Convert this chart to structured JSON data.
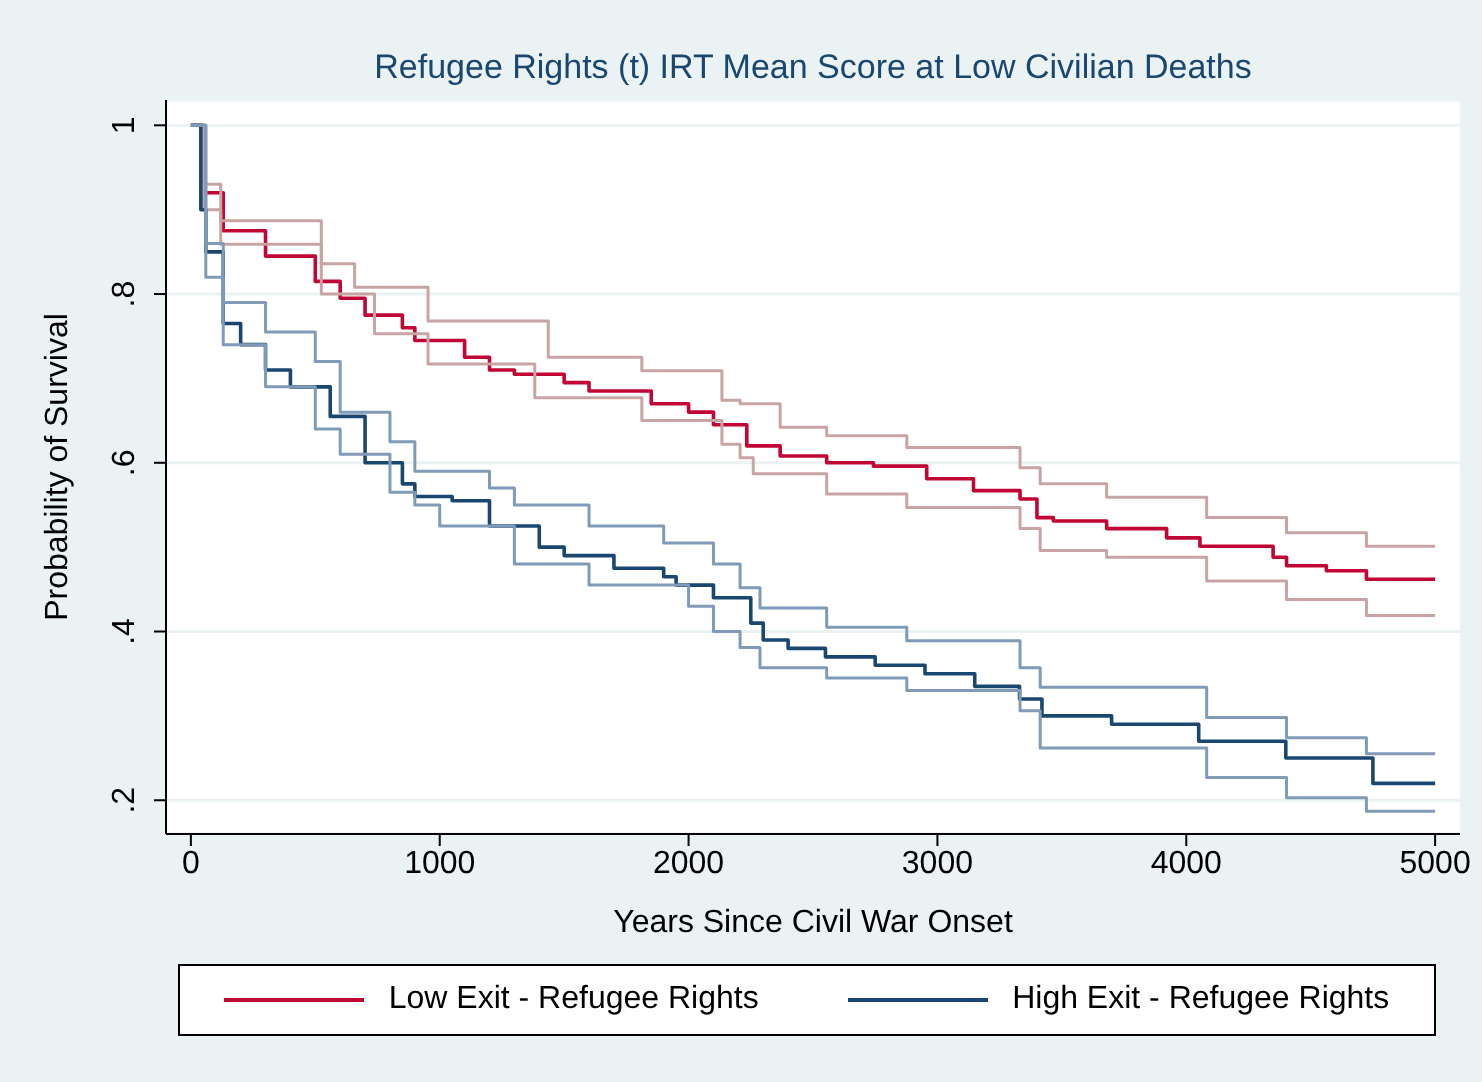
{
  "chart_data": {
    "type": "step",
    "title": "Refugee Rights (t) IRT Mean Score at Low Civilian Deaths",
    "xlabel": "Years Since Civil War Onset",
    "ylabel": "Probability of Survival",
    "xlim": [
      -100,
      5100
    ],
    "xticks": [
      0,
      1000,
      2000,
      3000,
      4000,
      5000
    ],
    "ylim": [
      0.16,
      1.03
    ],
    "yticks": [
      {
        "value": 0.2,
        "label": ".2"
      },
      {
        "value": 0.4,
        "label": ".4"
      },
      {
        "value": 0.6,
        "label": ".6"
      },
      {
        "value": 0.8,
        "label": ".8"
      },
      1
    ],
    "grid": "y",
    "legend": "bottom",
    "series": [
      {
        "name": "Low Exit - Refugee Rights",
        "color": "#c10534",
        "x": [
          0,
          50,
          130,
          300,
          500,
          600,
          700,
          850,
          900,
          1100,
          1200,
          1300,
          1500,
          1600,
          1850,
          2000,
          2100,
          2234,
          2368,
          2555,
          2743,
          2957,
          3145,
          3332,
          3400,
          3466,
          3680,
          3921,
          4055,
          4349,
          4403,
          4563,
          4724,
          5000
        ],
        "values": [
          1.0,
          0.92,
          0.875,
          0.845,
          0.815,
          0.795,
          0.775,
          0.76,
          0.745,
          0.725,
          0.71,
          0.705,
          0.695,
          0.685,
          0.67,
          0.66,
          0.645,
          0.62,
          0.608,
          0.6,
          0.596,
          0.581,
          0.567,
          0.557,
          0.535,
          0.531,
          0.522,
          0.511,
          0.501,
          0.488,
          0.478,
          0.472,
          0.462,
          0.462
        ]
      },
      {
        "color": "#c8a4a4",
        "x": [
          0,
          50,
          120,
          524,
          658,
          953,
          1436,
          1812,
          2134,
          2207,
          2368,
          2555,
          2877,
          3332,
          3413,
          3680,
          4082,
          4403,
          4724,
          5000
        ],
        "values": [
          1.0,
          0.93,
          0.887,
          0.836,
          0.808,
          0.768,
          0.725,
          0.709,
          0.674,
          0.67,
          0.642,
          0.632,
          0.618,
          0.594,
          0.575,
          0.559,
          0.535,
          0.517,
          0.501,
          0.501
        ]
      },
      {
        "color": "#c8a4a4",
        "x": [
          0,
          50,
          120,
          524,
          738,
          953,
          1382,
          1812,
          2134,
          2207,
          2260,
          2555,
          2877,
          3332,
          3413,
          3680,
          4082,
          4403,
          4724,
          5000
        ],
        "values": [
          1.0,
          0.9,
          0.859,
          0.8,
          0.753,
          0.717,
          0.677,
          0.65,
          0.622,
          0.606,
          0.587,
          0.563,
          0.547,
          0.522,
          0.496,
          0.488,
          0.46,
          0.438,
          0.419,
          0.419
        ]
      },
      {
        "name": "High Exit - Refugee Rights",
        "color": "#1a476f",
        "x": [
          0,
          40,
          60,
          130,
          200,
          300,
          400,
          560,
          700,
          850,
          900,
          1050,
          1200,
          1400,
          1500,
          1700,
          1900,
          1950,
          2100,
          2250,
          2300,
          2400,
          2550,
          2750,
          2950,
          3150,
          3330,
          3420,
          3700,
          4050,
          4400,
          4750,
          5000
        ],
        "values": [
          1.0,
          0.9,
          0.85,
          0.765,
          0.74,
          0.71,
          0.69,
          0.655,
          0.6,
          0.575,
          0.56,
          0.555,
          0.525,
          0.5,
          0.49,
          0.475,
          0.465,
          0.455,
          0.44,
          0.41,
          0.39,
          0.38,
          0.37,
          0.36,
          0.35,
          0.335,
          0.32,
          0.3,
          0.29,
          0.27,
          0.25,
          0.22,
          0.22
        ]
      },
      {
        "color": "#7f9bb8",
        "x": [
          0,
          60,
          130,
          300,
          500,
          600,
          800,
          900,
          1200,
          1300,
          1600,
          1900,
          2100,
          2207,
          2287,
          2555,
          2877,
          3332,
          3413,
          4082,
          4403,
          4724,
          5000
        ],
        "values": [
          1.0,
          0.86,
          0.79,
          0.755,
          0.72,
          0.66,
          0.625,
          0.59,
          0.57,
          0.55,
          0.525,
          0.505,
          0.48,
          0.452,
          0.428,
          0.405,
          0.389,
          0.357,
          0.334,
          0.298,
          0.274,
          0.255,
          0.255
        ]
      },
      {
        "color": "#7f9bb8",
        "x": [
          0,
          60,
          130,
          300,
          500,
          600,
          800,
          900,
          1000,
          1300,
          1600,
          2000,
          2100,
          2207,
          2287,
          2555,
          2877,
          3332,
          3413,
          4082,
          4403,
          4724,
          5000
        ],
        "values": [
          1.0,
          0.82,
          0.74,
          0.69,
          0.64,
          0.61,
          0.565,
          0.55,
          0.525,
          0.48,
          0.455,
          0.43,
          0.4,
          0.381,
          0.357,
          0.345,
          0.33,
          0.306,
          0.262,
          0.227,
          0.203,
          0.187,
          0.187
        ]
      }
    ]
  }
}
